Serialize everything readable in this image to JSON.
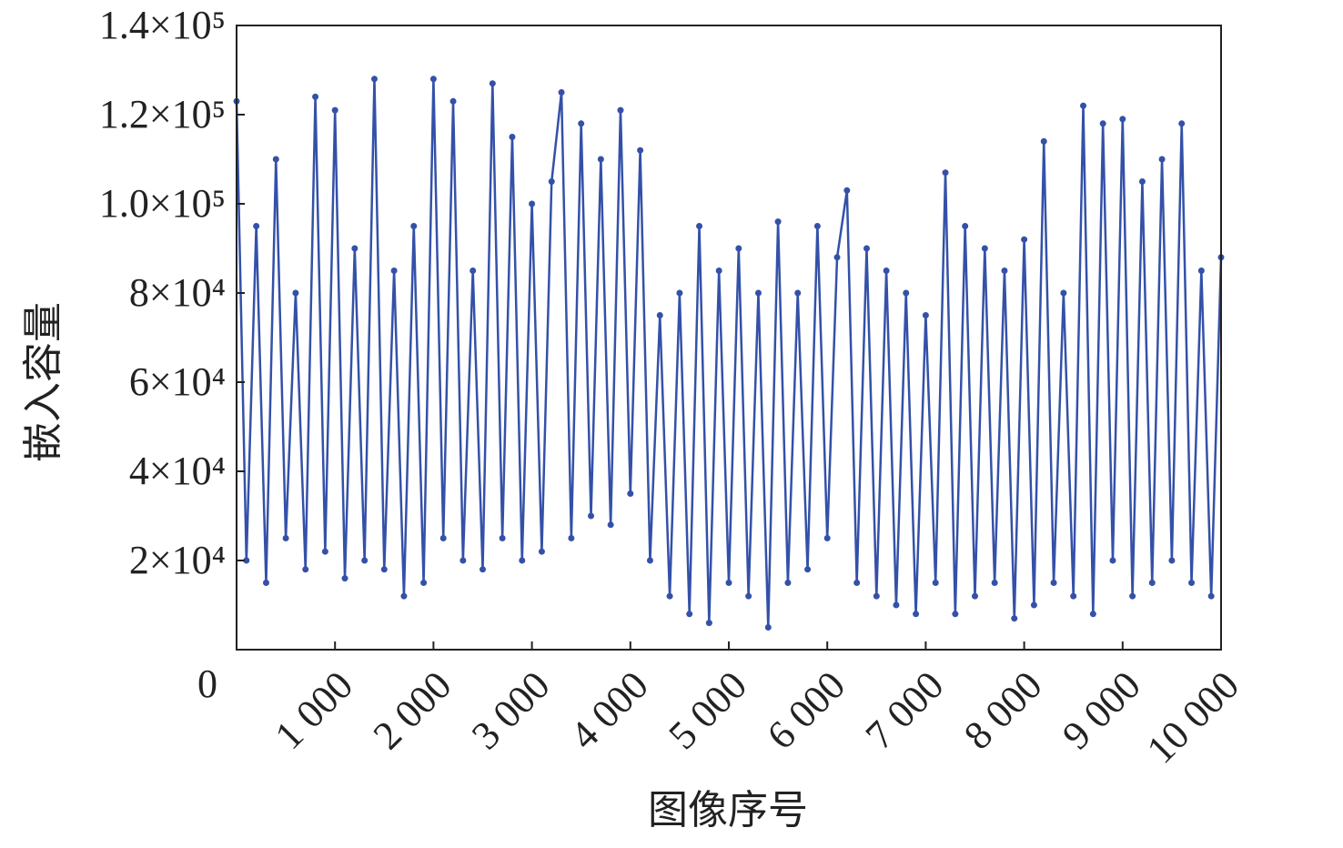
{
  "chart_data": {
    "type": "line",
    "xlabel": "图像序号",
    "ylabel": "嵌入容量",
    "color": "#3451a8",
    "x": [
      0,
      100,
      200,
      300,
      400,
      500,
      600,
      700,
      800,
      900,
      1000,
      1100,
      1200,
      1300,
      1400,
      1500,
      1600,
      1700,
      1800,
      1900,
      2000,
      2100,
      2200,
      2300,
      2400,
      2500,
      2600,
      2700,
      2800,
      2900,
      3000,
      3100,
      3200,
      3300,
      3400,
      3500,
      3600,
      3700,
      3800,
      3900,
      4000,
      4100,
      4200,
      4300,
      4400,
      4500,
      4600,
      4700,
      4800,
      4900,
      5000,
      5100,
      5200,
      5300,
      5400,
      5500,
      5600,
      5700,
      5800,
      5900,
      6000,
      6100,
      6200,
      6300,
      6400,
      6500,
      6600,
      6700,
      6800,
      6900,
      7000,
      7100,
      7200,
      7300,
      7400,
      7500,
      7600,
      7700,
      7800,
      7900,
      8000,
      8100,
      8200,
      8300,
      8400,
      8500,
      8600,
      8700,
      8800,
      8900,
      9000,
      9100,
      9200,
      9300,
      9400,
      9500,
      9600,
      9700,
      9800,
      9900,
      10000
    ],
    "values": [
      123000,
      20000,
      95000,
      15000,
      110000,
      25000,
      80000,
      18000,
      124000,
      22000,
      121000,
      16000,
      90000,
      20000,
      128000,
      18000,
      85000,
      12000,
      95000,
      15000,
      128000,
      25000,
      123000,
      20000,
      85000,
      18000,
      127000,
      25000,
      115000,
      20000,
      100000,
      22000,
      105000,
      125000,
      25000,
      118000,
      30000,
      110000,
      28000,
      121000,
      35000,
      112000,
      20000,
      75000,
      12000,
      80000,
      8000,
      95000,
      6000,
      85000,
      15000,
      90000,
      12000,
      80000,
      5000,
      96000,
      15000,
      80000,
      18000,
      95000,
      25000,
      88000,
      103000,
      15000,
      90000,
      12000,
      85000,
      10000,
      80000,
      8000,
      75000,
      15000,
      107000,
      8000,
      95000,
      12000,
      90000,
      15000,
      85000,
      7000,
      92000,
      10000,
      114000,
      15000,
      80000,
      12000,
      122000,
      8000,
      118000,
      20000,
      119000,
      12000,
      105000,
      15000,
      110000,
      20000,
      118000,
      15000,
      85000,
      12000,
      88000
    ],
    "xlim": [
      0,
      10000
    ],
    "xticks": [
      {
        "value": 0,
        "label": "0"
      },
      {
        "value": 1000,
        "label": "1 000"
      },
      {
        "value": 2000,
        "label": "2 000"
      },
      {
        "value": 3000,
        "label": "3 000"
      },
      {
        "value": 4000,
        "label": "4 000"
      },
      {
        "value": 5000,
        "label": "5 000"
      },
      {
        "value": 6000,
        "label": "6 000"
      },
      {
        "value": 7000,
        "label": "7 000"
      },
      {
        "value": 8000,
        "label": "8 000"
      },
      {
        "value": 9000,
        "label": "9 000"
      },
      {
        "value": 10000,
        "label": "10 000"
      }
    ],
    "ylim": [
      0,
      140000
    ],
    "yticks": [
      {
        "value": 20000,
        "label": "2×10⁴"
      },
      {
        "value": 40000,
        "label": "4×10⁴"
      },
      {
        "value": 60000,
        "label": "6×10⁴"
      },
      {
        "value": 80000,
        "label": "8×10⁴"
      },
      {
        "value": 100000,
        "label": "1.0×10⁵"
      },
      {
        "value": 120000,
        "label": "1.2×10⁵"
      },
      {
        "value": 140000,
        "label": "1.4×10⁵"
      }
    ]
  }
}
